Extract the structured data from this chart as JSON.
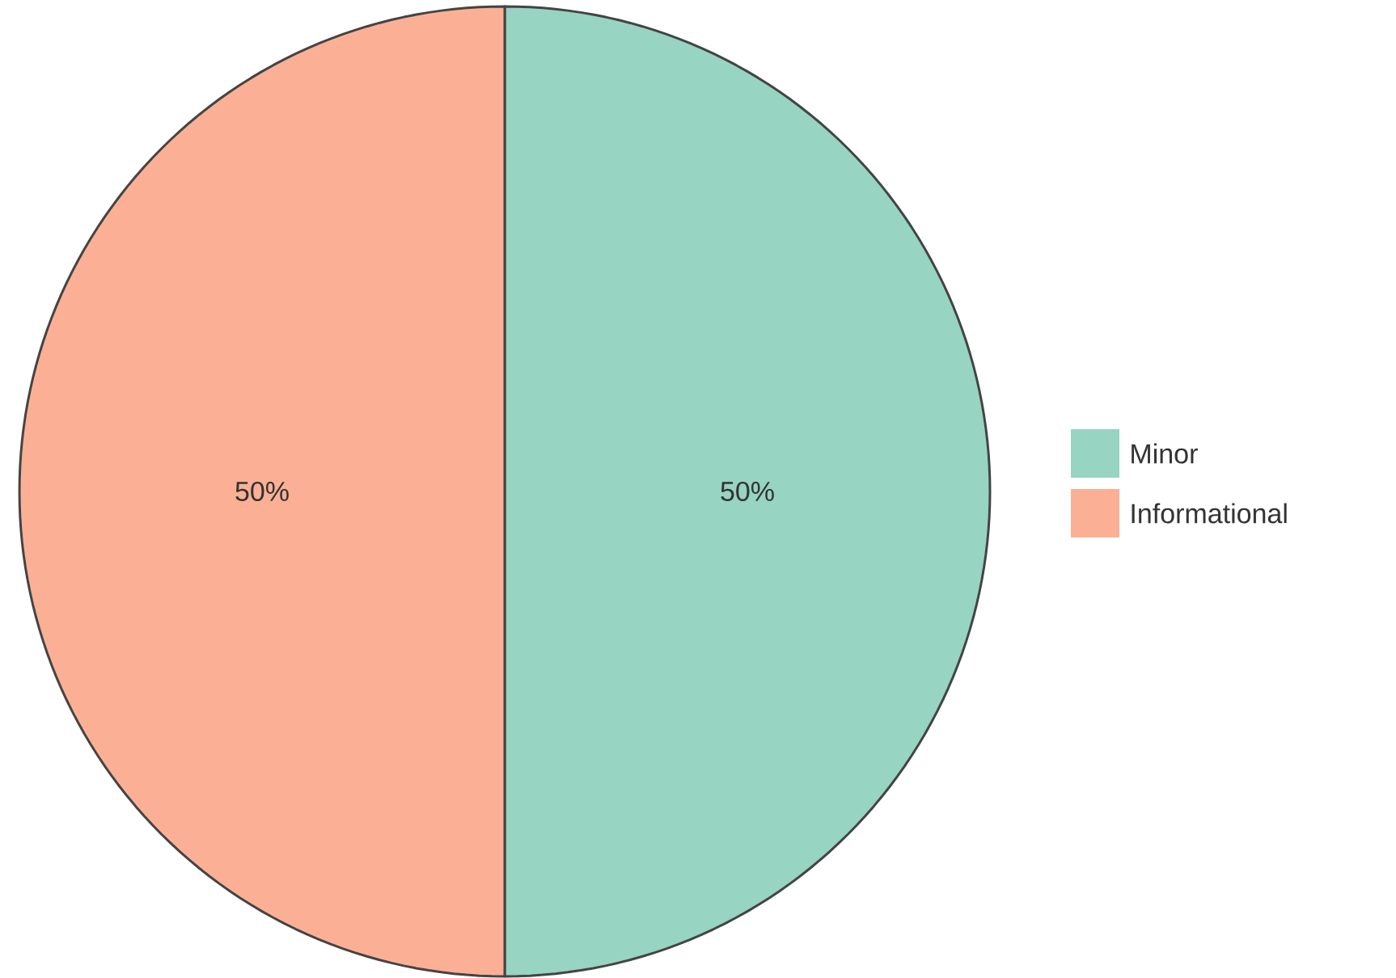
{
  "chart_data": {
    "type": "pie",
    "categories": [
      "Minor",
      "Informational"
    ],
    "values": [
      50,
      50
    ],
    "colors": [
      "#97d4c1",
      "#fbb095"
    ],
    "value_labels": [
      "50%",
      "50%"
    ],
    "legend": "right"
  }
}
